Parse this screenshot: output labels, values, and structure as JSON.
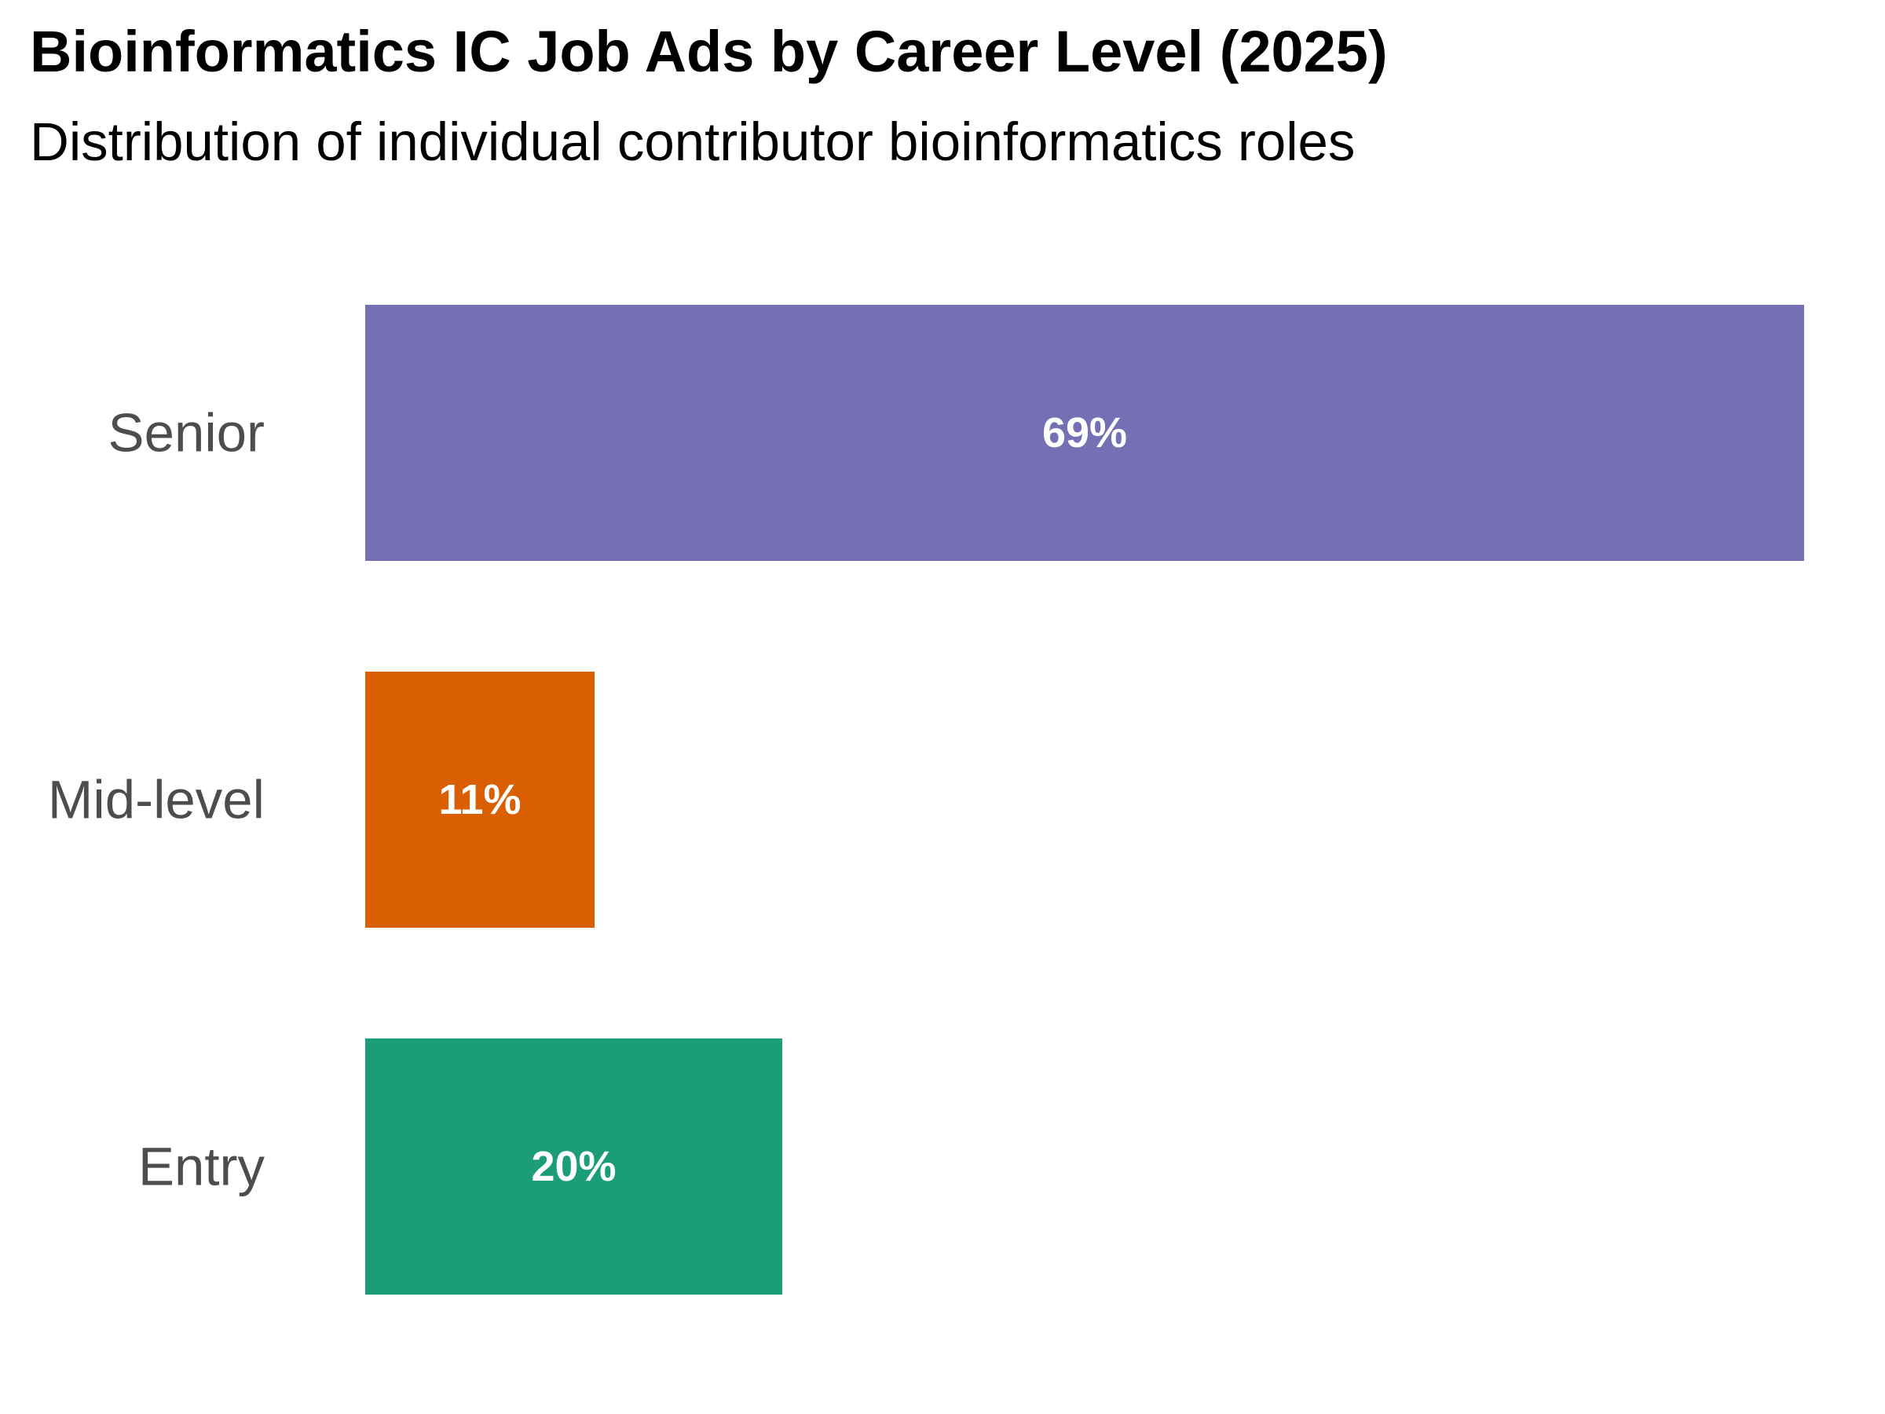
{
  "chart_data": {
    "type": "bar",
    "orientation": "horizontal",
    "title": "Bioinformatics IC Job Ads by Career Level (2025)",
    "subtitle": "Distribution of individual contributor bioinformatics roles",
    "xlabel": "",
    "ylabel": "",
    "grid": false,
    "legend": "none",
    "xlim": [
      0,
      69
    ],
    "unit": "%",
    "categories": [
      "Senior",
      "Mid-level",
      "Entry"
    ],
    "values": [
      69,
      11,
      20
    ],
    "value_labels": [
      "69%",
      "11%",
      "20%"
    ],
    "colors": [
      "#7570B3",
      "#D95F02",
      "#1B9E77"
    ]
  }
}
